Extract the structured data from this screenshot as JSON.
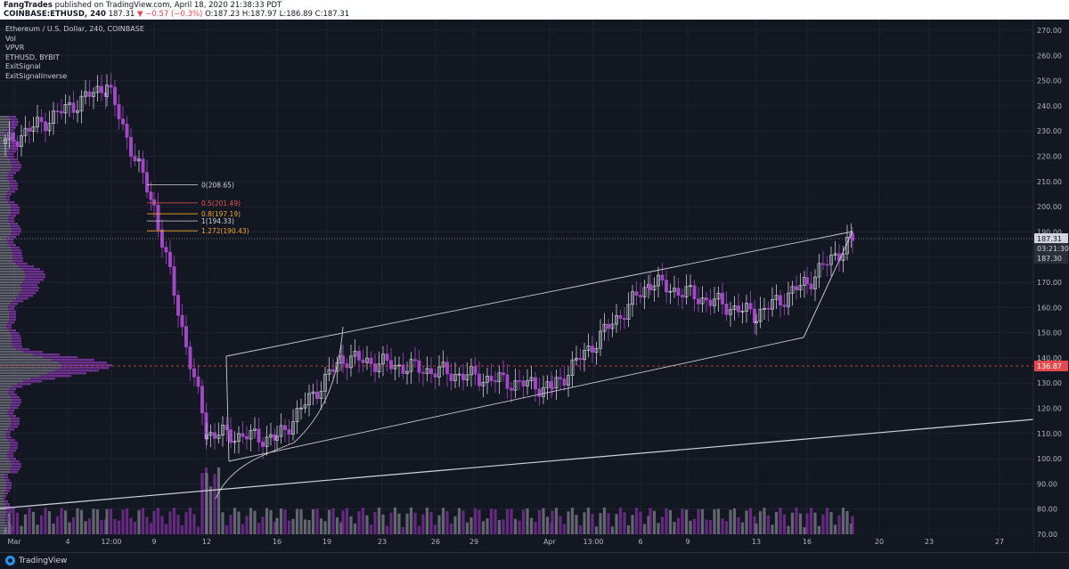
{
  "header": {
    "publisher": "FangTrades",
    "published_text": "published on TradingView.com, April 18, 2020 21:38:33 PDT",
    "symbol": "COINBASE:ETHUSD, 240",
    "last": "187.31",
    "change": "▼ −0.57 (−0.3%)",
    "o": "O:187.23",
    "h": "H:187.97",
    "l": "L:186.89",
    "c": "C:187.31"
  },
  "indicators": [
    "Ethereum / U.S. Dollar, 240, COINBASE",
    "Vol",
    "VPVR",
    "ETHUSD, BYBIT",
    "ExitSignal",
    "ExitSignalInverse"
  ],
  "footer": {
    "brand": "TradingView"
  },
  "colors": {
    "background": "#131722",
    "bull": "#c9ccd6",
    "bear": "#a347c6",
    "grid": "#1f2330",
    "price_tag_red": "#e5484d",
    "fib_orange": "#f5a623",
    "fib_red": "#ef5350"
  },
  "chart_data": {
    "type": "candlestick",
    "symbol": "ETHUSD",
    "interval": "240",
    "exchange": "COINBASE",
    "y_axis": {
      "ticks": [
        "270.00",
        "260.00",
        "250.00",
        "240.00",
        "230.00",
        "220.00",
        "210.00",
        "200.00",
        "190.00",
        "180.00",
        "170.00",
        "160.00",
        "150.00",
        "140.00",
        "130.00",
        "120.00",
        "110.00",
        "100.00",
        "90.00",
        "80.00",
        "70.00"
      ],
      "min": 70,
      "max": 270
    },
    "x_axis": {
      "ticks": [
        "Mar",
        "4",
        "12:00",
        "9",
        "12",
        "16",
        "19",
        "23",
        "26",
        "29",
        "Apr",
        "13:00",
        "6",
        "9",
        "13",
        "16",
        "20",
        "23",
        "27"
      ]
    },
    "price_labels": {
      "current": "187.31",
      "countdown": "03:21:30",
      "prev_close": "187.30",
      "level_line": "136.87"
    },
    "fib_levels": [
      {
        "label": "0(208.65)",
        "value": 208.65
      },
      {
        "label": "0.5(201.49)",
        "value": 201.49
      },
      {
        "label": "0.8(197.19)",
        "value": 197.19
      },
      {
        "label": "1(194.33)",
        "value": 194.33
      },
      {
        "label": "1.272(190.43)",
        "value": 190.43
      }
    ],
    "key_closes": [
      {
        "date": "Feb 29",
        "close": 225
      },
      {
        "date": "Mar 6",
        "close": 248
      },
      {
        "date": "Mar 9",
        "close": 200
      },
      {
        "date": "Mar 12",
        "close": 110
      },
      {
        "date": "Mar 16",
        "close": 108
      },
      {
        "date": "Mar 19",
        "close": 140
      },
      {
        "date": "Apr 1",
        "close": 128
      },
      {
        "date": "Apr 6",
        "close": 170
      },
      {
        "date": "Apr 13",
        "close": 157
      },
      {
        "date": "Apr 16",
        "close": 170
      },
      {
        "date": "Apr 18",
        "close": 187.31
      }
    ]
  }
}
